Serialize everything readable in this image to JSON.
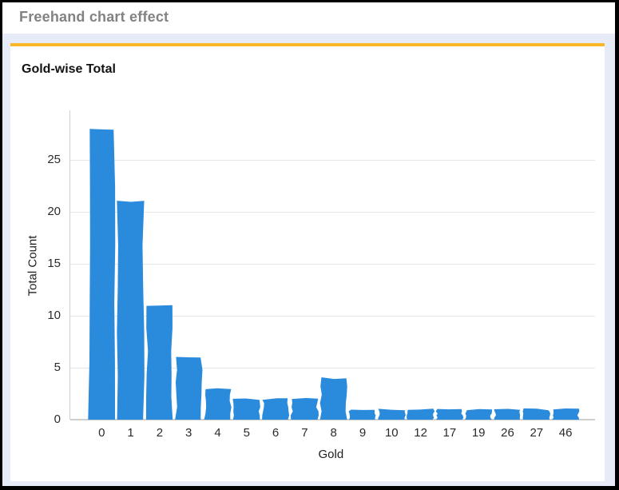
{
  "window": {
    "title": "Freehand chart effect"
  },
  "theme": {
    "accent_orange": "#FAB829",
    "bar_blue": "#2A8BDC",
    "page_background": "#E7EBF8",
    "header_text_gray": "#828282",
    "frame_border": "#000000"
  },
  "chart_data": {
    "type": "bar",
    "title": "Gold-wise Total",
    "xlabel": "Gold",
    "ylabel": "Total Count",
    "categories": [
      "0",
      "1",
      "2",
      "3",
      "4",
      "5",
      "6",
      "7",
      "8",
      "9",
      "10",
      "12",
      "17",
      "19",
      "26",
      "27",
      "46"
    ],
    "values": [
      28,
      21,
      11,
      6,
      3,
      2,
      2,
      2,
      4,
      1,
      1,
      1,
      1,
      1,
      1,
      1,
      1
    ],
    "yticks": [
      0,
      5,
      10,
      15,
      20,
      25
    ],
    "ylim": [
      0,
      30
    ],
    "grid": true,
    "legend_position": "none",
    "style": "freehand",
    "bar_color": "#2A8BDC"
  }
}
